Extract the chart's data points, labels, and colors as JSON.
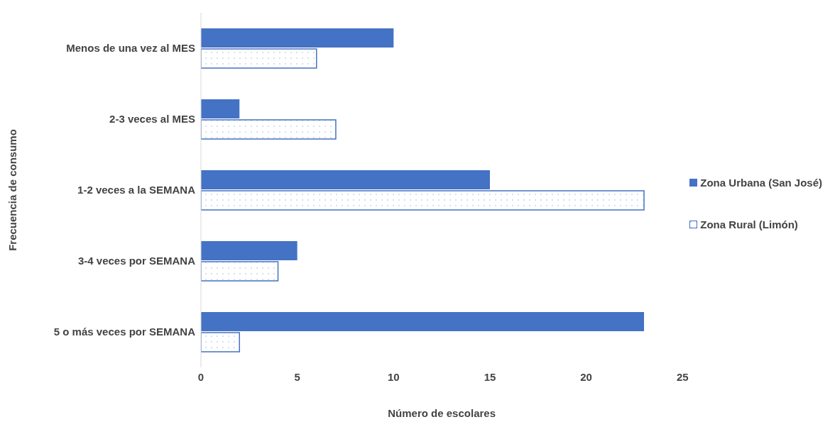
{
  "chart_data": {
    "type": "bar",
    "orientation": "horizontal",
    "xlabel": "Número de escolares",
    "ylabel": "Frecuencia de consumo",
    "categories": [
      "Menos de una vez al MES",
      "2-3 veces al MES",
      "1-2 veces a la SEMANA",
      "3-4 veces por SEMANA",
      "5 o más  veces por SEMANA"
    ],
    "series": [
      {
        "name": "Zona Urbana (San José)",
        "color": "#4472c4",
        "values": [
          10,
          2,
          15,
          5,
          23
        ]
      },
      {
        "name": "Zona Rural (Limón)",
        "color": "#4472c4",
        "values": [
          6,
          7,
          23,
          4,
          2
        ]
      }
    ],
    "xlim": [
      0,
      25
    ],
    "xticks": [
      0,
      5,
      10,
      15,
      20,
      25
    ],
    "grid": false,
    "legend": "right"
  }
}
